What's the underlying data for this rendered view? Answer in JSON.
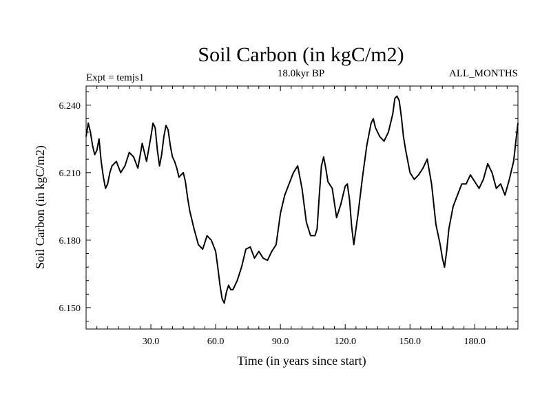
{
  "chart_data": {
    "type": "line",
    "title": "Soil Carbon (in kgC/m2)",
    "subtitle": "18.0kyr BP",
    "left_label": "Expt = temjs1",
    "right_label": "ALL_MONTHS",
    "xlabel": "Time (in years since start)",
    "ylabel": "Soil Carbon (in kgC/m2)",
    "xlim": [
      0,
      200
    ],
    "ylim": [
      6.1405,
      6.2485
    ],
    "xticks": [
      30,
      60,
      90,
      120,
      150,
      180
    ],
    "xtick_labels": [
      "30.0",
      "60.0",
      "90.0",
      "120.0",
      "150.0",
      "180.0"
    ],
    "yticks": [
      6.15,
      6.18,
      6.21,
      6.24
    ],
    "ytick_labels": [
      "6.150",
      "6.180",
      "6.210",
      "6.240"
    ],
    "grid": false,
    "line_color": "#000000",
    "series": [
      {
        "x": [
          0,
          1,
          2,
          3,
          4,
          5,
          6,
          7,
          8,
          9,
          10,
          11,
          12,
          14,
          16,
          18,
          20,
          22,
          24,
          26,
          28,
          30,
          31,
          32,
          33,
          34,
          35,
          36,
          37,
          38,
          39,
          40,
          41,
          42,
          43,
          44,
          45,
          46,
          47,
          48,
          50,
          52,
          54,
          56,
          58,
          60,
          61,
          62,
          63,
          64,
          65,
          66,
          67,
          68,
          70,
          72,
          74,
          76,
          78,
          80,
          82,
          84,
          86,
          88,
          90,
          92,
          94,
          96,
          98,
          100,
          102,
          104,
          106,
          107,
          108,
          109,
          110,
          111,
          112,
          114,
          116,
          118,
          120,
          121,
          122,
          123,
          124,
          126,
          128,
          130,
          132,
          133,
          134,
          136,
          138,
          140,
          142,
          143,
          144,
          145,
          146,
          147,
          148,
          150,
          152,
          154,
          156,
          158,
          160,
          162,
          164,
          165,
          166,
          167,
          168,
          170,
          172,
          174,
          176,
          178,
          180,
          182,
          184,
          186,
          188,
          190,
          192,
          194,
          196,
          198,
          200
        ],
        "y": [
          6.226,
          6.232,
          6.228,
          6.222,
          6.218,
          6.22,
          6.225,
          6.215,
          6.208,
          6.203,
          6.205,
          6.21,
          6.213,
          6.215,
          6.21,
          6.213,
          6.219,
          6.217,
          6.212,
          6.223,
          6.215,
          6.226,
          6.232,
          6.23,
          6.22,
          6.213,
          6.218,
          6.226,
          6.231,
          6.229,
          6.222,
          6.217,
          6.215,
          6.212,
          6.208,
          6.209,
          6.21,
          6.206,
          6.199,
          6.193,
          6.185,
          6.178,
          6.176,
          6.182,
          6.18,
          6.175,
          6.168,
          6.16,
          6.154,
          6.152,
          6.157,
          6.16,
          6.158,
          6.158,
          6.162,
          6.168,
          6.176,
          6.177,
          6.172,
          6.175,
          6.172,
          6.171,
          6.175,
          6.178,
          6.192,
          6.2,
          6.205,
          6.21,
          6.213,
          6.203,
          6.188,
          6.182,
          6.182,
          6.185,
          6.2,
          6.213,
          6.217,
          6.212,
          6.206,
          6.203,
          6.19,
          6.196,
          6.204,
          6.205,
          6.198,
          6.186,
          6.178,
          6.192,
          6.208,
          6.222,
          6.232,
          6.234,
          6.23,
          6.226,
          6.224,
          6.228,
          6.236,
          6.243,
          6.244,
          6.242,
          6.235,
          6.226,
          6.22,
          6.21,
          6.207,
          6.209,
          6.212,
          6.216,
          6.205,
          6.187,
          6.178,
          6.172,
          6.168,
          6.175,
          6.185,
          6.195,
          6.2,
          6.205,
          6.205,
          6.209,
          6.206,
          6.203,
          6.207,
          6.214,
          6.21,
          6.203,
          6.205,
          6.2,
          6.207,
          6.215,
          6.232
        ]
      }
    ]
  }
}
